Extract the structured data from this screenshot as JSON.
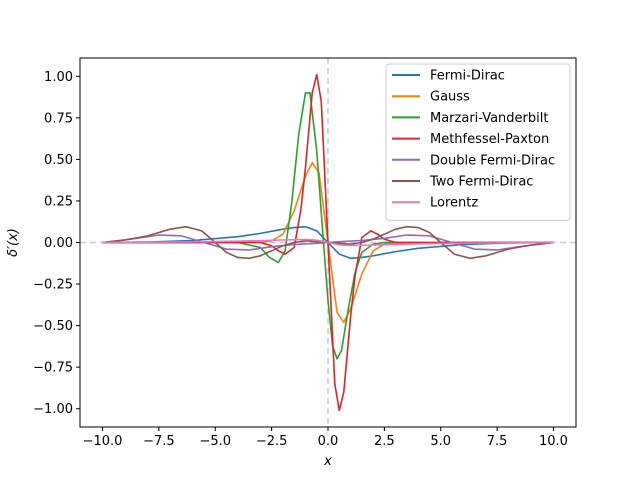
{
  "chart_data": {
    "type": "line",
    "title": "",
    "xlabel": "x",
    "ylabel": "δ′(x)",
    "xlim": [
      -11.0,
      11.0
    ],
    "ylim": [
      -1.11,
      1.11
    ],
    "xticks": [
      -10.0,
      -7.5,
      -5.0,
      -2.5,
      0.0,
      2.5,
      5.0,
      7.5,
      10.0
    ],
    "xtick_labels": [
      "−10.0",
      "−7.5",
      "−5.0",
      "−2.5",
      "0.0",
      "2.5",
      "5.0",
      "7.5",
      "10.0"
    ],
    "yticks": [
      -1.0,
      -0.75,
      -0.5,
      -0.25,
      0.0,
      0.25,
      0.5,
      0.75,
      1.0
    ],
    "ytick_labels": [
      "−1.00",
      "−0.75",
      "−0.50",
      "−0.25",
      "0.00",
      "0.25",
      "0.50",
      "0.75",
      "1.00"
    ],
    "grid": false,
    "legend_position": "top-right",
    "reference_lines": {
      "vertical_x": 0,
      "horizontal_y": 0,
      "color": "#cccccc",
      "style": "dashed"
    },
    "series": [
      {
        "name": "Fermi-Dirac",
        "color": "#1f77b4",
        "x": [
          -10,
          -8,
          -6,
          -4,
          -3,
          -2,
          -1.5,
          -1,
          -0.5,
          0,
          0.5,
          1,
          1.5,
          2,
          3,
          4,
          6,
          8,
          10
        ],
        "y": [
          0.0,
          0.003,
          0.012,
          0.035,
          0.055,
          0.08,
          0.09,
          0.095,
          0.07,
          0.0,
          -0.07,
          -0.095,
          -0.09,
          -0.08,
          -0.055,
          -0.035,
          -0.012,
          -0.003,
          0.0
        ]
      },
      {
        "name": "Gauss",
        "color": "#ff7f0e",
        "x": [
          -10,
          -3,
          -2.5,
          -2,
          -1.5,
          -1,
          -0.7,
          -0.4,
          0,
          0.4,
          0.7,
          1,
          1.5,
          2,
          2.5,
          3,
          10
        ],
        "y": [
          0.0,
          0.0,
          0.01,
          0.05,
          0.19,
          0.4,
          0.48,
          0.42,
          0.0,
          -0.42,
          -0.48,
          -0.4,
          -0.19,
          -0.05,
          -0.01,
          0.0,
          0.0
        ]
      },
      {
        "name": "Marzari-Vanderbilt",
        "color": "#2ca02c",
        "x": [
          -10,
          -4,
          -3,
          -2.6,
          -2.2,
          -1.9,
          -1.6,
          -1.3,
          -1.0,
          -0.8,
          -0.5,
          -0.2,
          0,
          0.2,
          0.4,
          0.6,
          0.9,
          1.2,
          1.5,
          2.0,
          2.5,
          3.0,
          4,
          10
        ],
        "y": [
          0.0,
          0.0,
          -0.03,
          -0.09,
          -0.12,
          -0.05,
          0.25,
          0.65,
          0.9,
          0.9,
          0.55,
          0.0,
          -0.35,
          -0.62,
          -0.7,
          -0.65,
          -0.4,
          -0.18,
          -0.06,
          -0.01,
          0.0,
          0.0,
          0.0,
          0.0
        ]
      },
      {
        "name": "Methfessel-Paxton",
        "color": "#d62728",
        "x": [
          -10,
          -3,
          -2.5,
          -2.2,
          -1.9,
          -1.5,
          -1.2,
          -1.0,
          -0.7,
          -0.5,
          -0.3,
          0,
          0.3,
          0.5,
          0.7,
          1.0,
          1.2,
          1.5,
          1.9,
          2.2,
          2.5,
          3.0,
          10
        ],
        "y": [
          0.0,
          0.0,
          -0.02,
          -0.05,
          -0.07,
          -0.03,
          0.2,
          0.45,
          0.9,
          1.01,
          0.85,
          0.0,
          -0.85,
          -1.01,
          -0.9,
          -0.45,
          -0.2,
          0.03,
          0.07,
          0.05,
          0.02,
          0.0,
          0.0
        ]
      },
      {
        "name": "Double Fermi-Dirac",
        "color": "#9467bd",
        "x": [
          -10,
          -8.5,
          -7.5,
          -6.5,
          -5.5,
          -4.5,
          -3.5,
          -2.5,
          -1.5,
          -0.5,
          0,
          0.5,
          1.5,
          2.5,
          3.5,
          4.5,
          5.5,
          6.5,
          7.5,
          8.5,
          10
        ],
        "y": [
          0.0,
          0.025,
          0.045,
          0.04,
          0.0,
          -0.04,
          -0.045,
          -0.025,
          -0.012,
          -0.005,
          0.0,
          0.005,
          0.012,
          0.025,
          0.045,
          0.04,
          0.0,
          -0.04,
          -0.045,
          -0.025,
          0.0
        ]
      },
      {
        "name": "Two Fermi-Dirac",
        "color": "#8c564b",
        "x": [
          -10,
          -9,
          -8,
          -7,
          -6.3,
          -5.6,
          -5,
          -4.5,
          -4,
          -3.5,
          -3,
          -2.5,
          -2,
          -1.5,
          -1,
          0,
          1,
          1.5,
          2,
          2.5,
          3,
          3.5,
          4,
          4.5,
          5,
          5.6,
          6.3,
          7,
          8,
          9,
          10
        ],
        "y": [
          0.0,
          0.015,
          0.04,
          0.08,
          0.095,
          0.07,
          0.0,
          -0.06,
          -0.09,
          -0.095,
          -0.08,
          -0.05,
          -0.02,
          0.0,
          0.01,
          0.0,
          -0.01,
          0.0,
          0.02,
          0.05,
          0.08,
          0.095,
          0.09,
          0.06,
          0.0,
          -0.07,
          -0.095,
          -0.08,
          -0.04,
          -0.015,
          0.0
        ]
      },
      {
        "name": "Lorentz",
        "color": "#e377c2",
        "x": [
          -10,
          -8,
          -6,
          -4,
          -2,
          -1,
          -0.5,
          0,
          0.5,
          1,
          2,
          4,
          6,
          8,
          10
        ],
        "y": [
          0.0,
          0.002,
          0.004,
          0.008,
          0.015,
          0.018,
          0.014,
          0.0,
          -0.014,
          -0.018,
          -0.015,
          -0.008,
          -0.004,
          -0.002,
          0.0
        ]
      }
    ]
  }
}
